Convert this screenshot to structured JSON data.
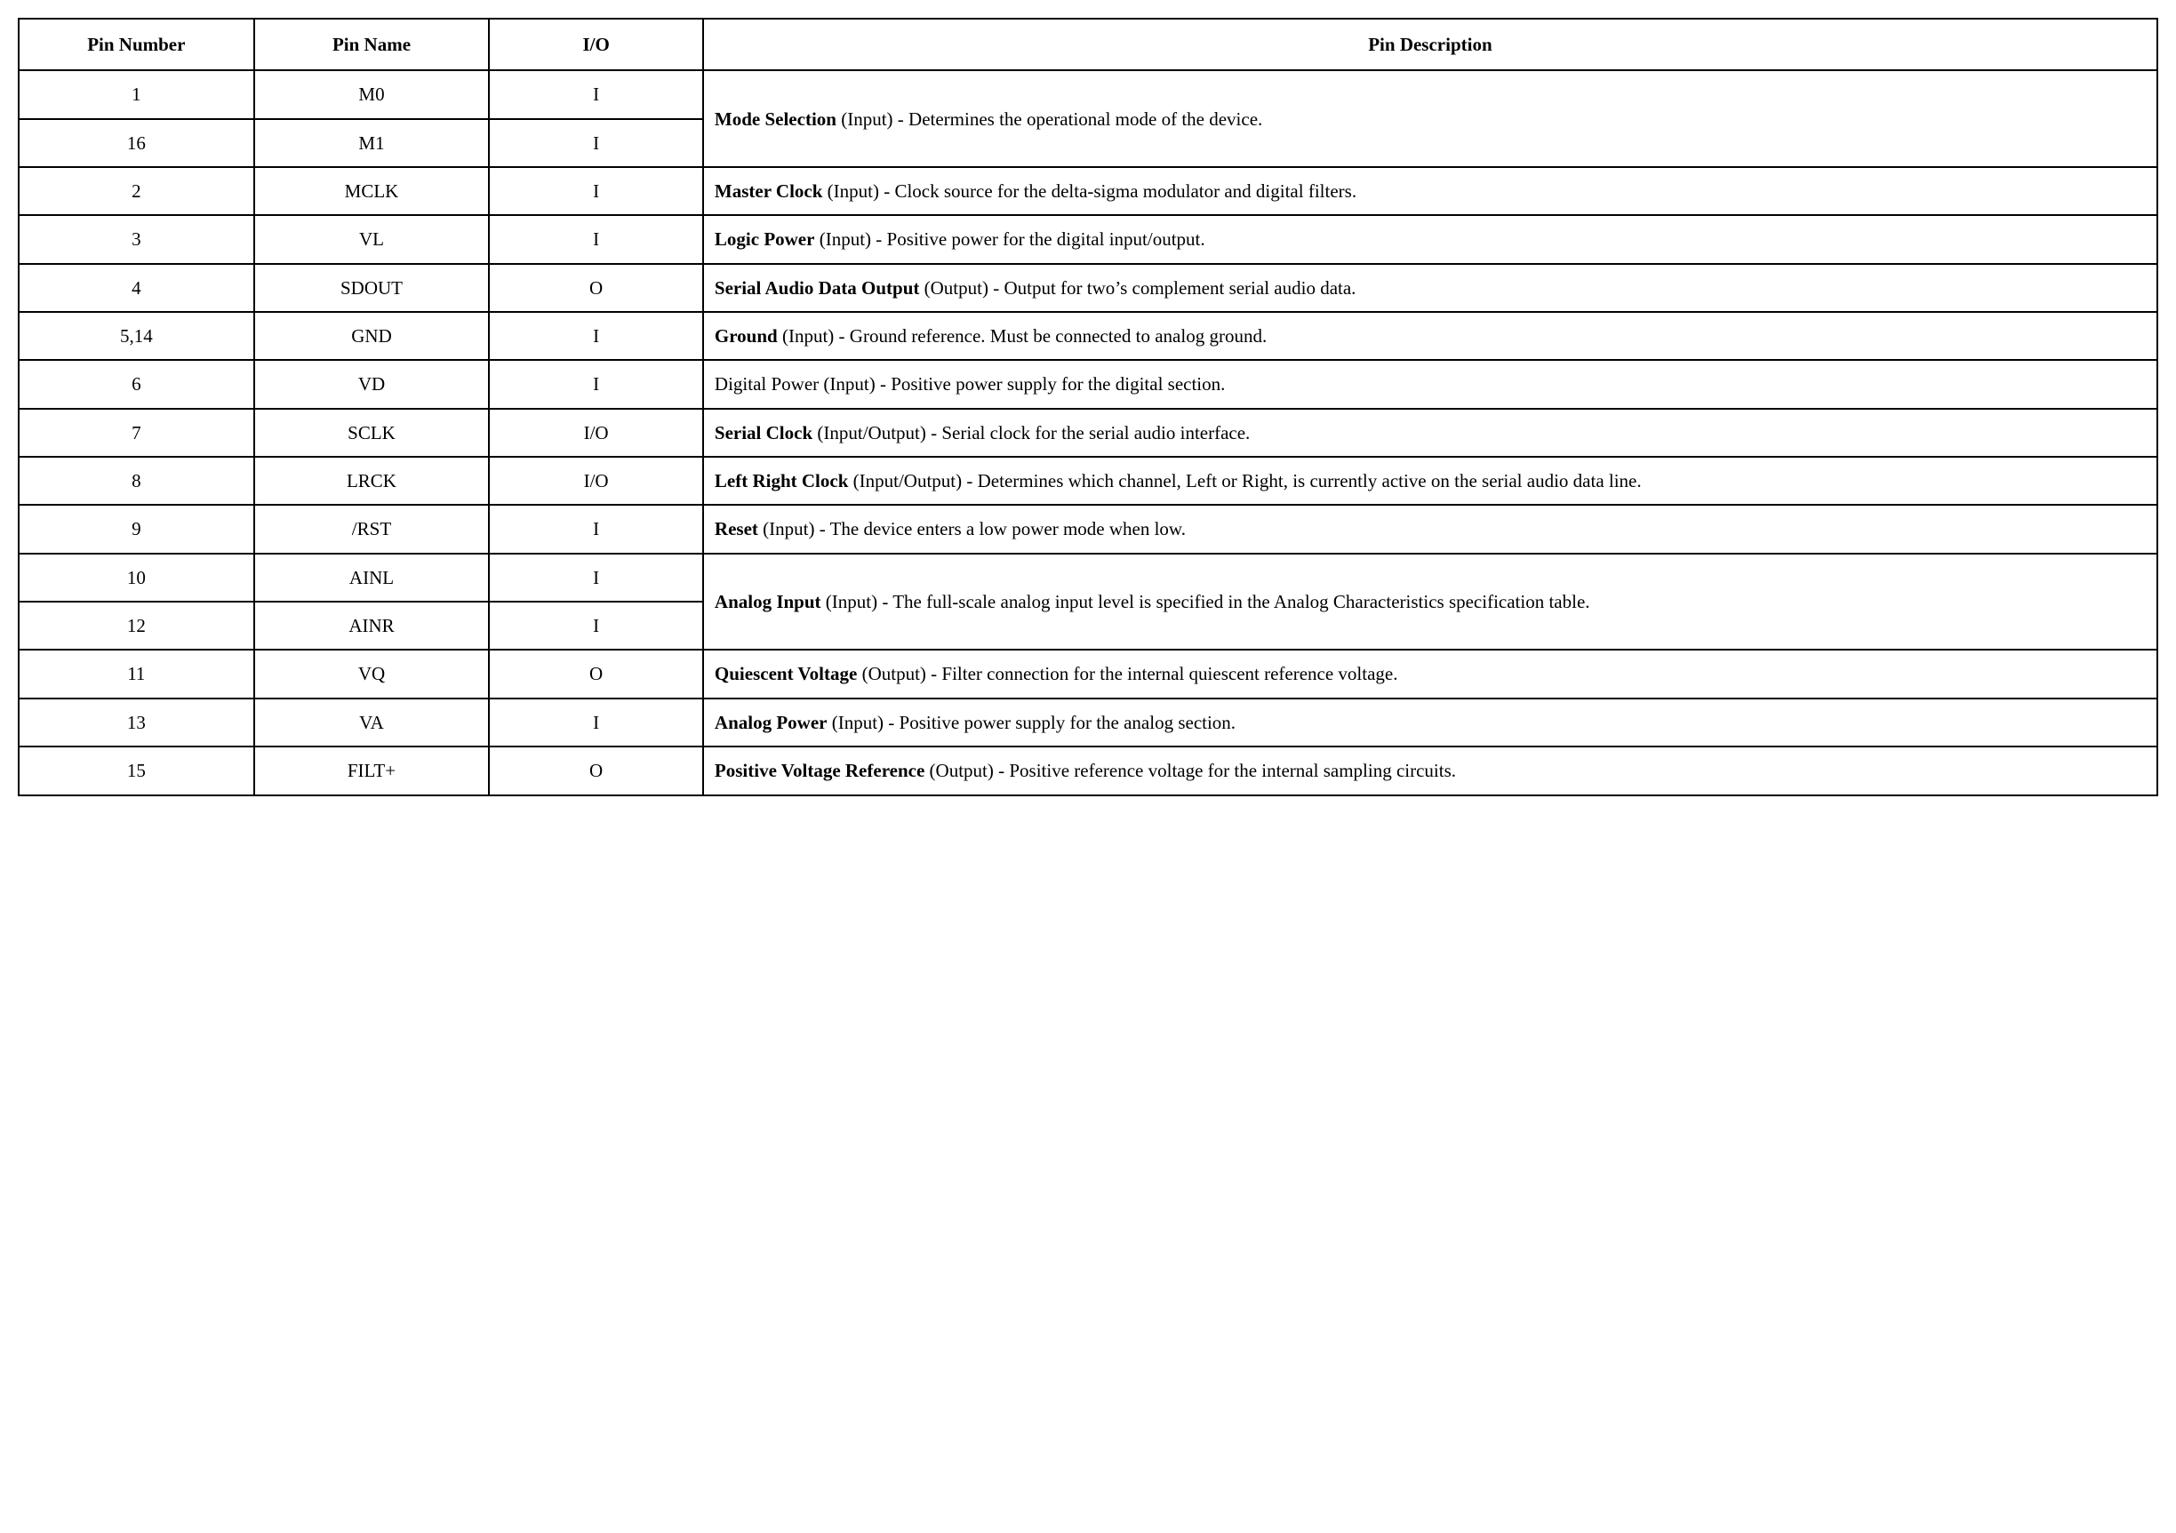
{
  "table": {
    "headers": {
      "pin_number": "Pin Number",
      "pin_name": "Pin Name",
      "io": "I/O",
      "description": "Pin Description"
    },
    "rows": [
      {
        "num": "1",
        "name": "M0",
        "io": "I",
        "desc_bold": "Mode Selection",
        "desc_rest": " (Input) - Determines the operational mode of the device.",
        "rowspan_desc": 2
      },
      {
        "num": "16",
        "name": "M1",
        "io": "I"
      },
      {
        "num": "2",
        "name": "MCLK",
        "io": "I",
        "desc_bold": "Master Clock",
        "desc_rest": " (Input) - Clock source for the delta-sigma modulator and digital filters."
      },
      {
        "num": "3",
        "name": "VL",
        "io": "I",
        "desc_bold": "Logic Power",
        "desc_rest": " (Input) - Positive power for the digital input/output."
      },
      {
        "num": "4",
        "name": "SDOUT",
        "io": "O",
        "desc_bold": "Serial Audio Data Output",
        "desc_rest": " (Output) - Output for two’s complement serial audio data."
      },
      {
        "num": "5,14",
        "name": "GND",
        "io": "I",
        "desc_bold": "Ground",
        "desc_rest": " (Input) - Ground reference. Must be connected to analog ground."
      },
      {
        "num": "6",
        "name": "VD",
        "io": "I",
        "desc_bold": "",
        "desc_rest": "Digital Power (Input) - Positive power supply for the digital section."
      },
      {
        "num": "7",
        "name": "SCLK",
        "io": "I/O",
        "desc_bold": "Serial Clock",
        "desc_rest": " (Input/Output) - Serial clock for the serial audio interface."
      },
      {
        "num": "8",
        "name": "LRCK",
        "io": "I/O",
        "desc_bold": "Left Right Clock",
        "desc_rest": " (Input/Output) - Determines which channel, Left or Right, is currently active on the serial audio data line."
      },
      {
        "num": "9",
        "name": "/RST",
        "io": "I",
        "desc_bold": "Reset",
        "desc_rest": " (Input) - The device enters a low power mode when low."
      },
      {
        "num": "10",
        "name": "AINL",
        "io": "I",
        "desc_bold": "Analog Input",
        "desc_rest": " (Input) - The full-scale analog input level is specified in the Analog Characteristics specification table.",
        "rowspan_desc": 2
      },
      {
        "num": "12",
        "name": "AINR",
        "io": "I"
      },
      {
        "num": "11",
        "name": "VQ",
        "io": "O",
        "desc_bold": "Quiescent Voltage",
        "desc_rest": " (Output) - Filter connection for the internal quiescent reference voltage."
      },
      {
        "num": "13",
        "name": "VA",
        "io": "I",
        "desc_bold": "Analog Power",
        "desc_rest": " (Input) - Positive power supply for the analog section."
      },
      {
        "num": "15",
        "name": "FILT+",
        "io": "O",
        "desc_bold": "Positive Voltage Reference",
        "desc_rest": " (Output) - Positive reference voltage for the internal sampling circuits."
      }
    ]
  }
}
